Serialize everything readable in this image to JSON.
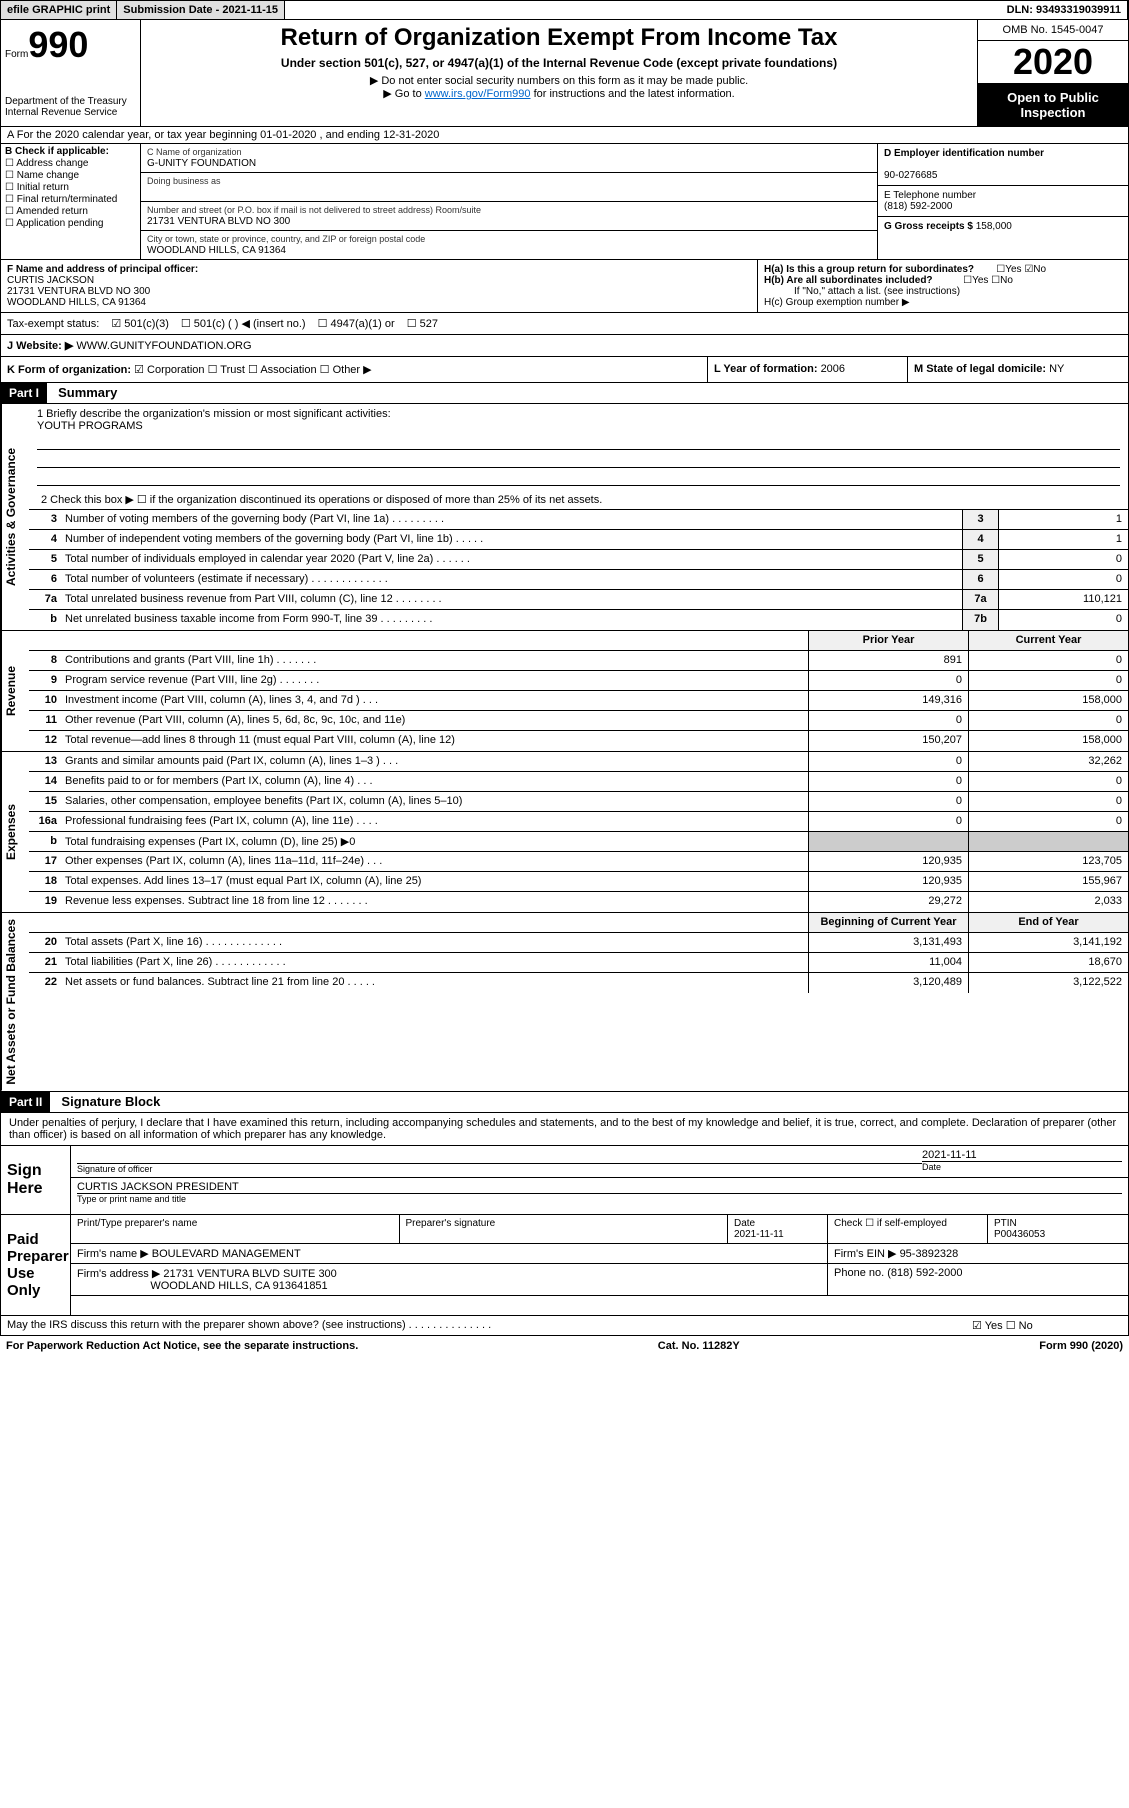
{
  "topbar": {
    "efile": "efile GRAPHIC print",
    "subdate_label": "Submission Date - ",
    "subdate": "2021-11-15",
    "dln_label": "DLN: ",
    "dln": "93493319039911"
  },
  "header": {
    "form_prefix": "Form",
    "form_num": "990",
    "dept": "Department of the Treasury\nInternal Revenue Service",
    "title": "Return of Organization Exempt From Income Tax",
    "sub": "Under section 501(c), 527, or 4947(a)(1) of the Internal Revenue Code (except private foundations)",
    "note1": "▶ Do not enter social security numbers on this form as it may be made public.",
    "note2_pre": "▶ Go to ",
    "note2_link": "www.irs.gov/Form990",
    "note2_post": " for instructions and the latest information.",
    "omb": "OMB No. 1545-0047",
    "year": "2020",
    "open": "Open to Public Inspection"
  },
  "rowA": "A    For the 2020 calendar year, or tax year beginning 01-01-2020    , and ending 12-31-2020",
  "colB": {
    "hdr": "B Check if applicable:",
    "items": [
      "Address change",
      "Name change",
      "Initial return",
      "Final return/terminated",
      "Amended return",
      "Application pending"
    ]
  },
  "colC": {
    "name_label": "C Name of organization",
    "name": "G-UNITY FOUNDATION",
    "dba_label": "Doing business as",
    "dba": "",
    "addr_label": "Number and street (or P.O. box if mail is not delivered to street address)      Room/suite",
    "addr": "21731 VENTURA BLVD NO 300",
    "city_label": "City or town, state or province, country, and ZIP or foreign postal code",
    "city": "WOODLAND HILLS, CA   91364"
  },
  "colD": {
    "ein_label": "D Employer identification number",
    "ein": "90-0276685",
    "tel_label": "E Telephone number",
    "tel": "(818) 592-2000",
    "gross_label": "G Gross receipts $ ",
    "gross": "158,000"
  },
  "colF": {
    "label": "F  Name and address of principal officer:",
    "name": "CURTIS JACKSON",
    "addr": "21731 VENTURA BLVD NO 300\nWOODLAND HILLS, CA   91364"
  },
  "colH": {
    "ha": "H(a)  Is this a group return for subordinates?",
    "hb": "H(b)  Are all subordinates included?",
    "hb_note": "If \"No,\" attach a list. (see instructions)",
    "hc": "H(c)  Group exemption number ▶",
    "yes": "Yes",
    "no": "No"
  },
  "tax": {
    "label": "Tax-exempt status:",
    "opts": [
      "501(c)(3)",
      "501(c) (  ) ◀ (insert no.)",
      "4947(a)(1) or",
      "527"
    ]
  },
  "rowJ": {
    "label": "J   Website: ▶",
    "val": "WWW.GUNITYFOUNDATION.ORG"
  },
  "rowK": {
    "label": "K Form of organization:",
    "opts": [
      "Corporation",
      "Trust",
      "Association",
      "Other ▶"
    ]
  },
  "rowL": {
    "label": "L Year of formation: ",
    "val": "2006"
  },
  "rowM": {
    "label": "M State of legal domicile: ",
    "val": "NY"
  },
  "part1": {
    "hdr": "Part I",
    "title": "Summary",
    "mission_label": "1   Briefly describe the organization's mission or most significant activities:",
    "mission": "YOUTH PROGRAMS",
    "line2": "2     Check this box ▶ ☐  if the organization discontinued its operations or disposed of more than 25% of its net assets.",
    "sides": [
      "Activities & Governance",
      "Revenue",
      "Expenses",
      "Net Assets or Fund Balances"
    ]
  },
  "gov_lines": [
    {
      "n": "3",
      "d": "Number of voting members of the governing body (Part VI, line 1a)   .    .    .    .    .    .    .    .    .",
      "b": "3",
      "v": "1"
    },
    {
      "n": "4",
      "d": "Number of independent voting members of the governing body (Part VI, line 1b)   .    .    .    .    .",
      "b": "4",
      "v": "1"
    },
    {
      "n": "5",
      "d": "Total number of individuals employed in calendar year 2020 (Part V, line 2a)   .    .    .    .    .    .",
      "b": "5",
      "v": "0"
    },
    {
      "n": "6",
      "d": "Total number of volunteers (estimate if necessary)   .    .    .    .    .    .    .    .    .    .    .    .    .",
      "b": "6",
      "v": "0"
    },
    {
      "n": "7a",
      "d": "Total unrelated business revenue from Part VIII, column (C), line 12   .    .    .    .    .    .    .    .",
      "b": "7a",
      "v": "110,121"
    },
    {
      "n": "b",
      "d": "Net unrelated business taxable income from Form 990-T, line 39   .    .    .    .    .    .    .    .    .",
      "b": "7b",
      "v": "0"
    }
  ],
  "col_hdrs": {
    "prior": "Prior Year",
    "current": "Current Year",
    "begin": "Beginning of Current Year",
    "end": "End of Year"
  },
  "rev_lines": [
    {
      "n": "8",
      "d": "Contributions and grants (Part VIII, line 1h)   .    .    .    .    .    .    .",
      "p": "891",
      "c": "0"
    },
    {
      "n": "9",
      "d": "Program service revenue (Part VIII, line 2g)   .    .    .    .    .    .    .",
      "p": "0",
      "c": "0"
    },
    {
      "n": "10",
      "d": "Investment income (Part VIII, column (A), lines 3, 4, and 7d )   .    .    .",
      "p": "149,316",
      "c": "158,000"
    },
    {
      "n": "11",
      "d": "Other revenue (Part VIII, column (A), lines 5, 6d, 8c, 9c, 10c, and 11e)",
      "p": "0",
      "c": "0"
    },
    {
      "n": "12",
      "d": "Total revenue—add lines 8 through 11 (must equal Part VIII, column (A), line 12)",
      "p": "150,207",
      "c": "158,000"
    }
  ],
  "exp_lines": [
    {
      "n": "13",
      "d": "Grants and similar amounts paid (Part IX, column (A), lines 1–3 )   .    .    .",
      "p": "0",
      "c": "32,262"
    },
    {
      "n": "14",
      "d": "Benefits paid to or for members (Part IX, column (A), line 4)   .    .    .",
      "p": "0",
      "c": "0"
    },
    {
      "n": "15",
      "d": "Salaries, other compensation, employee benefits (Part IX, column (A), lines 5–10)",
      "p": "0",
      "c": "0"
    },
    {
      "n": "16a",
      "d": "Professional fundraising fees (Part IX, column (A), line 11e)   .    .    .    .",
      "p": "0",
      "c": "0"
    },
    {
      "n": "b",
      "d": "Total fundraising expenses (Part IX, column (D), line 25)  ▶0",
      "p": "",
      "c": "",
      "grey": true
    },
    {
      "n": "17",
      "d": "Other expenses (Part IX, column (A), lines 11a–11d, 11f–24e)   .    .    .",
      "p": "120,935",
      "c": "123,705"
    },
    {
      "n": "18",
      "d": "Total expenses. Add lines 13–17 (must equal Part IX, column (A), line 25)",
      "p": "120,935",
      "c": "155,967"
    },
    {
      "n": "19",
      "d": "Revenue less expenses. Subtract line 18 from line 12   .    .    .    .    .    .    .",
      "p": "29,272",
      "c": "2,033"
    }
  ],
  "net_lines": [
    {
      "n": "20",
      "d": "Total assets (Part X, line 16)   .    .    .    .    .    .    .    .    .    .    .    .    .",
      "p": "3,131,493",
      "c": "3,141,192"
    },
    {
      "n": "21",
      "d": "Total liabilities (Part X, line 26)   .    .    .    .    .    .    .    .    .    .    .    .",
      "p": "11,004",
      "c": "18,670"
    },
    {
      "n": "22",
      "d": "Net assets or fund balances. Subtract line 21 from line 20   .    .    .    .    .",
      "p": "3,120,489",
      "c": "3,122,522"
    }
  ],
  "part2": {
    "hdr": "Part II",
    "title": "Signature Block",
    "decl": "Under penalties of perjury, I declare that I have examined this return, including accompanying schedules and statements, and to the best of my knowledge and belief, it is true, correct, and complete. Declaration of preparer (other than officer) is based on all information of which preparer has any knowledge.",
    "sign_here": "Sign Here",
    "sig_officer": "Signature of officer",
    "sig_date": "2021-11-11",
    "date_lbl": "Date",
    "officer_name": "CURTIS JACKSON  PRESIDENT",
    "type_name": "Type or print name and title",
    "paid": "Paid Preparer Use Only",
    "prep_name_lbl": "Print/Type preparer's name",
    "prep_sig_lbl": "Preparer's signature",
    "prep_date": "2021-11-11",
    "check_self": "Check ☐  if self-employed",
    "ptin_lbl": "PTIN",
    "ptin": "P00436053",
    "firm_name_lbl": "Firm's name      ▶",
    "firm_name": "BOULEVARD MANAGEMENT",
    "firm_ein_lbl": "Firm's EIN ▶",
    "firm_ein": "95-3892328",
    "firm_addr_lbl": "Firm's address  ▶",
    "firm_addr": "21731 VENTURA BLVD SUITE 300",
    "firm_addr2": "WOODLAND HILLS, CA   913641851",
    "phone_lbl": "Phone no. ",
    "phone": "(818) 592-2000",
    "irs_discuss": "May the IRS discuss this return with the preparer shown above? (see instructions)    .    .    .    .    .    .    .    .    .    .    .    .    .    ."
  },
  "footer": {
    "left": "For Paperwork Reduction Act Notice, see the separate instructions.",
    "mid": "Cat. No. 11282Y",
    "right": "Form 990 (2020)"
  }
}
